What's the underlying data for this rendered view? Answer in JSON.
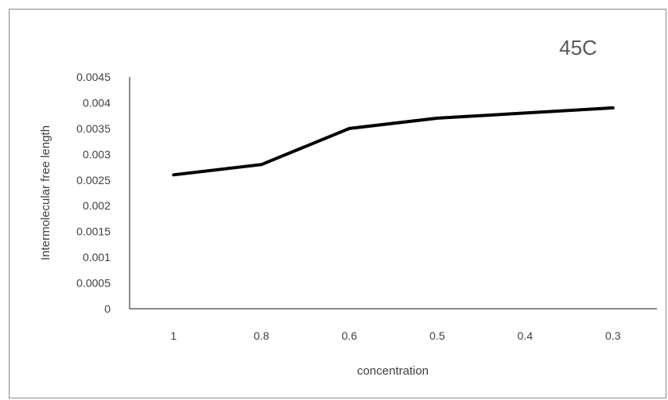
{
  "chart_data": {
    "type": "line",
    "title": "45C",
    "xlabel": "concentration",
    "ylabel": "Intermolecular free length",
    "categories": [
      "1",
      "0.8",
      "0.6",
      "0.5",
      "0.4",
      "0.3"
    ],
    "series": [
      {
        "values": [
          0.0026,
          0.0028,
          0.0035,
          0.0037,
          0.0038,
          0.0039
        ],
        "color": "#000000"
      }
    ],
    "ylim": [
      0,
      0.0045
    ],
    "yticks": [
      "0",
      "0.0005",
      "0.001",
      "0.0015",
      "0.002",
      "0.0025",
      "0.003",
      "0.0035",
      "0.004",
      "0.0045"
    ],
    "grid": false,
    "legend": "none"
  }
}
